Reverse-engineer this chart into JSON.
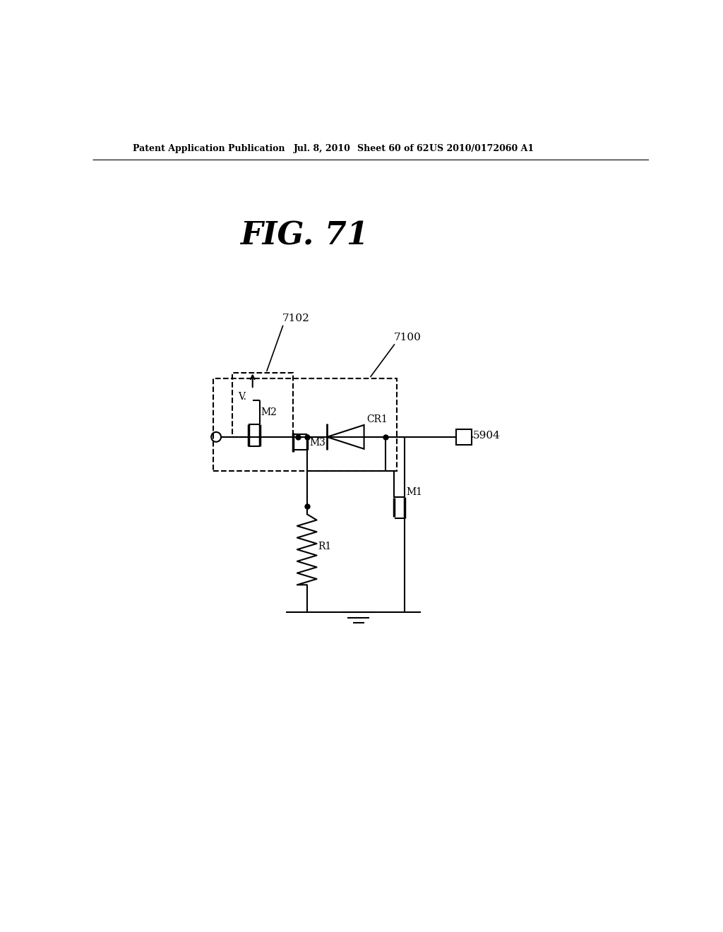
{
  "bg_color": "#ffffff",
  "header_left": "Patent Application Publication",
  "header_mid": "Jul. 8, 2010",
  "header_mid2": "Sheet 60 of 62",
  "header_right": "US 2010/0172060 A1",
  "fig_title": "FIG. 71",
  "label_7102": "7102",
  "label_7100": "7100",
  "label_M2": "M2",
  "label_CR1": "CR1",
  "label_M3": "M3",
  "label_M1": "M1",
  "label_R1": "R1",
  "label_5904": "5904",
  "label_V": "V."
}
